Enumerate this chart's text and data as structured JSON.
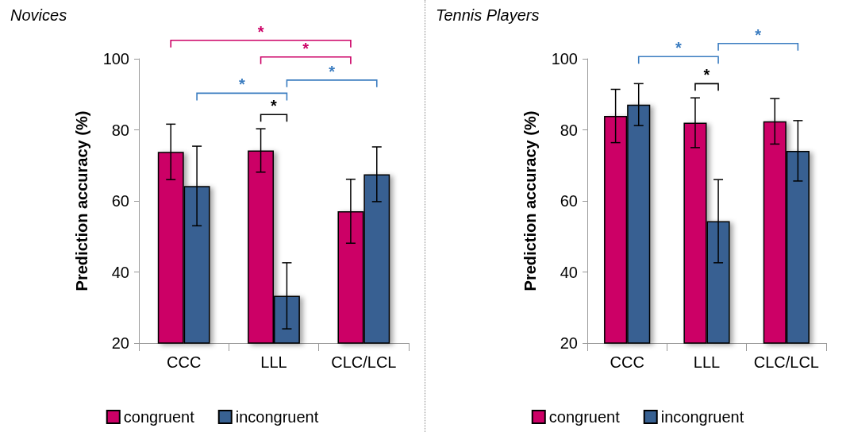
{
  "chart_data": [
    {
      "type": "bar",
      "title": "Novices",
      "ylabel": "Prediction accuracy (%)",
      "categories": [
        "CCC",
        "LLL",
        "CLC/LCL"
      ],
      "series": [
        {
          "name": "congruent",
          "color": "#cc0066",
          "values": [
            73.8,
            74.2,
            57.1
          ],
          "errors": [
            7.8,
            6.1,
            9
          ]
        },
        {
          "name": "incongruent",
          "color": "#386192",
          "values": [
            64.2,
            33.3,
            67.5
          ],
          "errors": [
            11.2,
            9.3,
            7.7
          ]
        }
      ],
      "ylim": [
        20,
        100
      ],
      "yticks": [
        20,
        40,
        60,
        80,
        100
      ],
      "grid": false,
      "legend": "bottom",
      "annotations": [
        "*",
        "*",
        "*",
        "*",
        "*"
      ]
    },
    {
      "type": "bar",
      "title": "Tennis Players",
      "ylabel": "Prediction accuracy (%)",
      "categories": [
        "CCC",
        "LLL",
        "CLC/LCL"
      ],
      "series": [
        {
          "name": "congruent",
          "color": "#cc0066",
          "values": [
            83.9,
            82,
            82.4
          ],
          "errors": [
            7.5,
            7,
            6.4
          ]
        },
        {
          "name": "incongruent",
          "color": "#386192",
          "values": [
            87.1,
            54.3,
            74.1
          ],
          "errors": [
            5.9,
            11.7,
            8.5
          ]
        }
      ],
      "ylim": [
        20,
        100
      ],
      "yticks": [
        20,
        40,
        60,
        80,
        100
      ],
      "grid": false,
      "legend": "bottom",
      "annotations": [
        "*",
        "*",
        "*"
      ]
    }
  ]
}
